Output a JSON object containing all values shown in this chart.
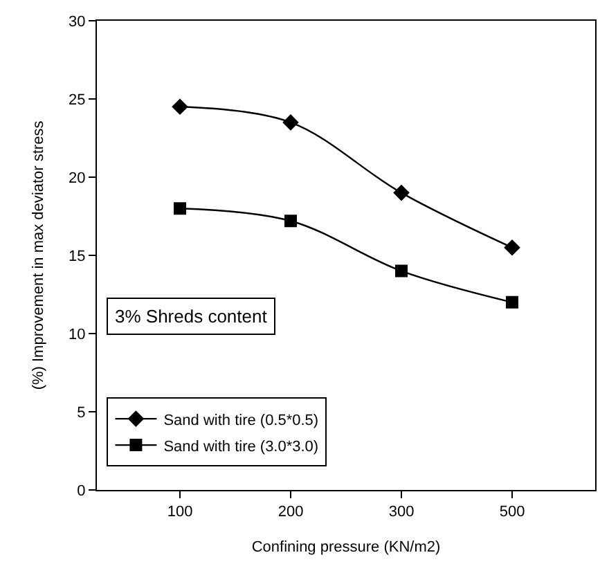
{
  "chart_data": {
    "type": "line",
    "xlabel": "Confining pressure (KN/m2)",
    "ylabel": "(%) Improvement in max deviator stress",
    "categories": [
      "100",
      "200",
      "300",
      "500"
    ],
    "series": [
      {
        "name": "Sand with tire (0.5*0.5)",
        "color": "#000000",
        "marker": "diamond",
        "values": [
          24.5,
          23.5,
          19,
          15.5
        ]
      },
      {
        "name": "Sand with tire (3.0*3.0)",
        "color": "#000000",
        "marker": "square",
        "values": [
          18,
          17.2,
          14,
          12
        ]
      }
    ],
    "ylim": [
      0,
      30
    ],
    "yticks": [
      0,
      5,
      10,
      15,
      20,
      25,
      30
    ],
    "legend": "bottom left",
    "line_style": "solid",
    "annotations": [
      "3% Shreds content"
    ]
  }
}
